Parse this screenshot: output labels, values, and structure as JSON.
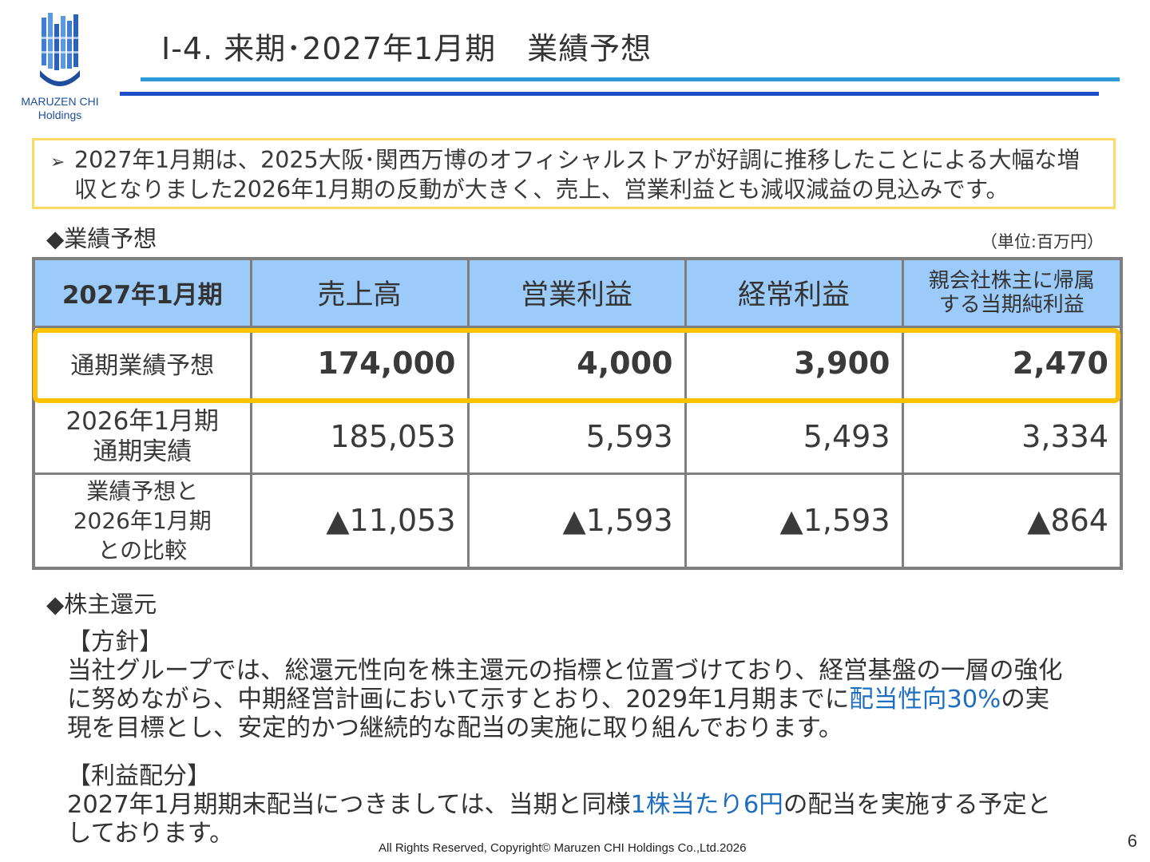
{
  "logo": {
    "name": "MARUZEN CHI",
    "sub": "Holdings"
  },
  "page_title": "Ⅰ-4. 来期･2027年1月期　業績予想",
  "notice": {
    "line1": "2027年1月期は、2025大阪･関西万博のオフィシャルストアが好調に推移したことによる大幅な増",
    "line2": "収となりました2026年1月期の反動が大きく、売上、営業利益とも減収減益の見込みです。"
  },
  "forecast_section": {
    "title": "◆業績予想",
    "unit": "（単位:百万円）",
    "headers": [
      "2027年1月期",
      "売上高",
      "営業利益",
      "経常利益",
      [
        "親会社株主に帰属",
        "する当期純利益"
      ]
    ],
    "rows": [
      {
        "label": [
          "通期業績予想"
        ],
        "values": [
          "174,000",
          "4,000",
          "3,900",
          "2,470"
        ]
      },
      {
        "label": [
          "2026年1月期",
          "通期実績"
        ],
        "values": [
          "185,053",
          "5,593",
          "5,493",
          "3,334"
        ]
      },
      {
        "label": [
          "業績予想と",
          "2026年1月期",
          "との比較"
        ],
        "values": [
          "▲11,053",
          "▲1,593",
          "▲1,593",
          "▲864"
        ]
      }
    ]
  },
  "return_section": {
    "title": "◆株主還元",
    "policy_title": "【方針】",
    "policy_l1": "当社グループでは、総還元性向を株主還元の指標と位置づけており、経営基盤の一層の強化",
    "policy_l2a": "に努めながら、中期経営計画において示すとおり、2029年1月期までに",
    "policy_l2_hl": "配当性向30%",
    "policy_l2b": "の実",
    "policy_l3": "現を目標とし、安定的かつ継続的な配当の実施に取り組んでおります。",
    "dist_title": "【利益配分】",
    "dist_l1a": "2027年1月期期末配当につきましては、当期と同様",
    "dist_l1_hl": "1株当たり6円",
    "dist_l1b": "の配当を実施する予定と",
    "dist_l2": "しております。"
  },
  "footer": "All Rights Reserved, Copyright© Maruzen CHI Holdings Co.,Ltd.2026",
  "page_number": "6",
  "colors": {
    "header_bg": "#9ccbfa",
    "highlight": "#ffc000",
    "notice_border": "#ffd966",
    "accent_blue": "#1f6fc0",
    "rule_light": "#2f9ad8",
    "rule_dark": "#1f4fc8"
  }
}
